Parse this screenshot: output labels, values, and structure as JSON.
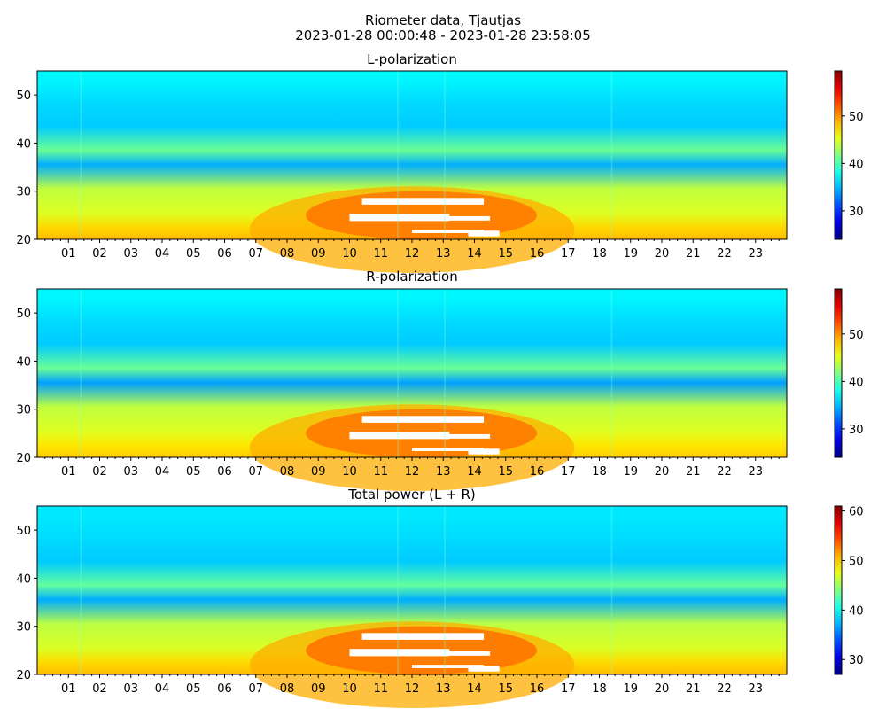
{
  "figure": {
    "suptitle_line1": "Riometer data, Tjautjas",
    "suptitle_line2": "2023-01-28 00:00:48 - 2023-01-28 23:58:05"
  },
  "chart_data": [
    {
      "type": "heatmap",
      "title": "L-polarization",
      "xlabel": "",
      "ylabel": "",
      "x_tick_labels": [
        "01",
        "02",
        "03",
        "04",
        "05",
        "06",
        "07",
        "08",
        "09",
        "10",
        "11",
        "12",
        "13",
        "14",
        "15",
        "16",
        "17",
        "18",
        "19",
        "20",
        "21",
        "22",
        "23"
      ],
      "x_range_hours": [
        0,
        24
      ],
      "y_range": [
        20,
        55
      ],
      "y_ticks": [
        20,
        30,
        40,
        50
      ],
      "colormap": "jet",
      "colorbar": {
        "range": [
          24,
          59.5
        ],
        "ticks": [
          30,
          40,
          50
        ]
      },
      "background_level": 44,
      "saturated_region": {
        "hours": [
          10,
          15
        ],
        "y": [
          21,
          30
        ],
        "note_color": "#ffffff"
      },
      "bands": [
        {
          "y": 53,
          "level": 37
        },
        {
          "y": 48,
          "level": 36
        },
        {
          "y": 43.5,
          "level": 35.5
        },
        {
          "y": 38.5,
          "level": 41
        },
        {
          "y": 35.5,
          "level": 34.5
        },
        {
          "y": 30.5,
          "level": 44
        },
        {
          "y": 25.5,
          "level": 45
        },
        {
          "y": 22.5,
          "level": 47.5
        }
      ]
    },
    {
      "type": "heatmap",
      "title": "R-polarization",
      "xlabel": "",
      "ylabel": "",
      "x_tick_labels": [
        "01",
        "02",
        "03",
        "04",
        "05",
        "06",
        "07",
        "08",
        "09",
        "10",
        "11",
        "12",
        "13",
        "14",
        "15",
        "16",
        "17",
        "18",
        "19",
        "20",
        "21",
        "22",
        "23"
      ],
      "x_range_hours": [
        0,
        24
      ],
      "y_range": [
        20,
        55
      ],
      "y_ticks": [
        20,
        30,
        40,
        50
      ],
      "colormap": "jet",
      "colorbar": {
        "range": [
          24,
          59.5
        ],
        "ticks": [
          30,
          40,
          50
        ]
      },
      "background_level": 44,
      "saturated_region": {
        "hours": [
          10,
          15
        ],
        "y": [
          21,
          30
        ],
        "note_color": "#ffffff"
      },
      "bands": [
        {
          "y": 53,
          "level": 37
        },
        {
          "y": 48,
          "level": 36
        },
        {
          "y": 43.5,
          "level": 35.5
        },
        {
          "y": 38.5,
          "level": 41
        },
        {
          "y": 35.5,
          "level": 34
        },
        {
          "y": 30.5,
          "level": 44
        },
        {
          "y": 25.5,
          "level": 45
        },
        {
          "y": 22.5,
          "level": 47
        }
      ]
    },
    {
      "type": "heatmap",
      "title": "Total power (L + R)",
      "xlabel": "",
      "ylabel": "",
      "x_tick_labels": [
        "01",
        "02",
        "03",
        "04",
        "05",
        "06",
        "07",
        "08",
        "09",
        "10",
        "11",
        "12",
        "13",
        "14",
        "15",
        "16",
        "17",
        "18",
        "19",
        "20",
        "21",
        "22",
        "23"
      ],
      "x_range_hours": [
        0,
        24
      ],
      "y_range": [
        20,
        55
      ],
      "y_ticks": [
        20,
        30,
        40,
        50
      ],
      "colormap": "jet",
      "colorbar": {
        "range": [
          27,
          61
        ],
        "ticks": [
          30,
          40,
          50,
          60
        ]
      },
      "background_level": 46,
      "saturated_region": {
        "hours": [
          10,
          15
        ],
        "y": [
          21,
          30
        ],
        "note_color": "#ffffff"
      },
      "bands": [
        {
          "y": 53,
          "level": 39
        },
        {
          "y": 48,
          "level": 38.5
        },
        {
          "y": 43.5,
          "level": 38
        },
        {
          "y": 38.5,
          "level": 43
        },
        {
          "y": 35.5,
          "level": 37
        },
        {
          "y": 30.5,
          "level": 46
        },
        {
          "y": 25.5,
          "level": 47
        },
        {
          "y": 22.5,
          "level": 49.5
        }
      ]
    }
  ]
}
